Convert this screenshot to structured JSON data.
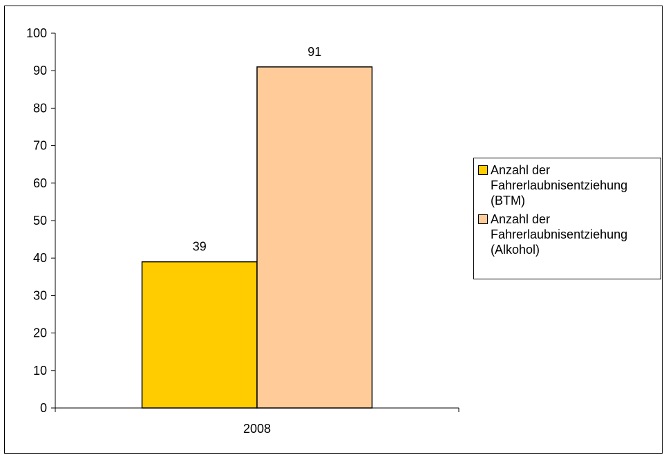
{
  "chart_data": {
    "type": "bar",
    "categories": [
      "2008"
    ],
    "series": [
      {
        "name": "Anzahl der Fahrerlaubnisentziehung (BTM)",
        "values": [
          39
        ],
        "color": "#FFCC00"
      },
      {
        "name": "Anzahl der Fahrerlaubnisentziehung (Alkohol)",
        "values": [
          91
        ],
        "color": "#FFCC99"
      }
    ],
    "data_labels": [
      "39",
      "91"
    ],
    "ylim": [
      0,
      100
    ],
    "yticks": [
      "0",
      "10",
      "20",
      "30",
      "40",
      "50",
      "60",
      "70",
      "80",
      "90",
      "100"
    ],
    "title": "",
    "xlabel": "",
    "ylabel": "",
    "grid": false,
    "legend_position": "right"
  },
  "legend": {
    "items": [
      {
        "label": "Anzahl der\nFahrerlaubnisentziehung\n(BTM)",
        "color": "#FFCC00"
      },
      {
        "label": "Anzahl der\nFahrerlaubnisentziehung\n(Alkohol)",
        "color": "#FFCC99"
      }
    ]
  }
}
